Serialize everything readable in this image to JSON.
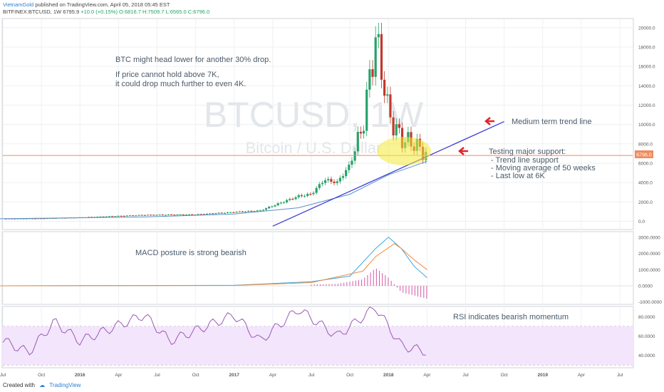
{
  "header": {
    "author": "VietnamGold",
    "published": "published on TradingView.com, April 05, 2018 05:45 EST",
    "symbol": "BITFINEX:BTCUSD, 1W",
    "last": "6795.9",
    "change": "+10.0 (+0.15%)",
    "ohlc": "O:6816.7 H:7509.7 L:6565.0 C:6796.0"
  },
  "watermark": {
    "symbol": "BTCUSD, 1W",
    "name": "Bitcoin / U.S. Dollar"
  },
  "annotations": {
    "main_1": "BTC might head lower for another 30% drop.",
    "main_2": "If price cannot hold above 7K,",
    "main_3": "it could drop much further to even 4K.",
    "trend": "Medium term trend line",
    "support_title": "Testing major support:",
    "support_1": "- Trend line support",
    "support_2": "- Moving average of 50 weeks",
    "support_3": "- Last low at 6K",
    "macd": "MACD posture is strong bearish",
    "rsi": "RSI indicates bearish momentum"
  },
  "price_tag": "6796.0",
  "footer": {
    "created": "Created with",
    "brand": "TradingView"
  },
  "colors": {
    "up": "#26a269",
    "down": "#c0392b",
    "trend": "#3b3bd6",
    "ma": "#5b8fc9",
    "macd": "#3aa7e0",
    "signal": "#f08a3c",
    "hist": "#d455a6",
    "rsi": "#9b59b6",
    "rsi_band": "#f3e5fb",
    "price_line": "#f08a5c",
    "ellipse": "#f4ea3a",
    "arrow": "#e0242a"
  },
  "chart_data": {
    "type": "candlestick",
    "x_ticks": [
      "Jul",
      "Oct",
      "2016",
      "Apr",
      "Jul",
      "Oct",
      "2017",
      "Apr",
      "Jul",
      "Oct",
      "2018",
      "Apr",
      "Jul",
      "Oct",
      "2019",
      "Apr",
      "Jul"
    ],
    "x_range": [
      "2015-07",
      "2019-08"
    ],
    "price_axis": {
      "ticks": [
        20000,
        18000,
        16000,
        14000,
        12000,
        10000,
        8000,
        6000,
        4000,
        2000,
        0
      ],
      "ylim": [
        -700,
        20500
      ]
    },
    "price_series": [
      {
        "date": "2015-06",
        "close": 260
      },
      {
        "date": "2015-10",
        "close": 300
      },
      {
        "date": "2016-01",
        "close": 400
      },
      {
        "date": "2016-06",
        "close": 650
      },
      {
        "date": "2016-10",
        "close": 700
      },
      {
        "date": "2017-01",
        "close": 950
      },
      {
        "date": "2017-03",
        "close": 1100
      },
      {
        "date": "2017-05",
        "close": 2100
      },
      {
        "date": "2017-06",
        "close": 2600
      },
      {
        "date": "2017-07",
        "close": 2800
      },
      {
        "date": "2017-08",
        "close": 4300
      },
      {
        "date": "2017-09",
        "close": 4000
      },
      {
        "date": "2017-10",
        "close": 5800
      },
      {
        "date": "2017-11",
        "close": 9800
      },
      {
        "date": "2017-12",
        "close": 19000
      },
      {
        "date": "2017-12-22",
        "close": 14000
      },
      {
        "date": "2018-01",
        "close": 11000
      },
      {
        "date": "2018-02",
        "close": 8500
      },
      {
        "date": "2018-03",
        "close": 8000
      },
      {
        "date": "2018-04",
        "close": 6796
      }
    ],
    "ma_50": [
      {
        "date": "2015-06",
        "value": 250
      },
      {
        "date": "2016-06",
        "value": 450
      },
      {
        "date": "2017-01",
        "value": 750
      },
      {
        "date": "2017-06",
        "value": 1400
      },
      {
        "date": "2017-10",
        "value": 2800
      },
      {
        "date": "2018-01",
        "value": 4800
      },
      {
        "date": "2018-04",
        "value": 6200
      }
    ],
    "trend_line": [
      {
        "date": "2017-04",
        "value": -500
      },
      {
        "date": "2018-10",
        "value": 10300
      }
    ],
    "last_price": 6796.0,
    "macd_axis": {
      "ticks": [
        3000,
        2000,
        1000,
        0,
        -1000
      ],
      "labels": [
        "3000.0000",
        "2000.0000",
        "1000.0000",
        "0.0000",
        "-1000.0000"
      ],
      "ylim": [
        -1100,
        3300
      ]
    },
    "macd": [
      {
        "date": "2015-06",
        "value": 0
      },
      {
        "date": "2017-01",
        "value": 30
      },
      {
        "date": "2017-07",
        "value": 250
      },
      {
        "date": "2017-10",
        "value": 600
      },
      {
        "date": "2017-12",
        "value": 2300
      },
      {
        "date": "2018-01",
        "value": 3000
      },
      {
        "date": "2018-02",
        "value": 2300
      },
      {
        "date": "2018-03",
        "value": 1200
      },
      {
        "date": "2018-04",
        "value": 500
      }
    ],
    "signal": [
      {
        "date": "2015-06",
        "value": 0
      },
      {
        "date": "2017-01",
        "value": 20
      },
      {
        "date": "2017-07",
        "value": 200
      },
      {
        "date": "2017-11",
        "value": 900
      },
      {
        "date": "2017-12",
        "value": 1800
      },
      {
        "date": "2018-01-15",
        "value": 2600
      },
      {
        "date": "2018-02",
        "value": 2300
      },
      {
        "date": "2018-03",
        "value": 1600
      },
      {
        "date": "2018-04",
        "value": 1000
      }
    ],
    "histogram": [
      {
        "date": "2017-07",
        "value": 80
      },
      {
        "date": "2017-09",
        "value": 120
      },
      {
        "date": "2017-11",
        "value": 400
      },
      {
        "date": "2017-12",
        "value": 1100
      },
      {
        "date": "2018-01",
        "value": 500
      },
      {
        "date": "2018-02",
        "value": -400
      },
      {
        "date": "2018-03",
        "value": -600
      },
      {
        "date": "2018-04",
        "value": -800
      }
    ],
    "rsi_axis": {
      "ticks": [
        80,
        60,
        40
      ],
      "labels": [
        "80.0000",
        "60.0000",
        "40.0000"
      ],
      "ylim": [
        28,
        90
      ],
      "band": [
        30,
        70
      ]
    },
    "rsi": [
      {
        "date": "2015-06",
        "value": 62
      },
      {
        "date": "2015-09",
        "value": 43
      },
      {
        "date": "2015-11",
        "value": 75
      },
      {
        "date": "2016-01",
        "value": 55
      },
      {
        "date": "2016-06",
        "value": 82
      },
      {
        "date": "2016-08",
        "value": 55
      },
      {
        "date": "2017-01",
        "value": 82
      },
      {
        "date": "2017-03",
        "value": 55
      },
      {
        "date": "2017-06",
        "value": 88
      },
      {
        "date": "2017-09",
        "value": 60
      },
      {
        "date": "2017-12",
        "value": 90
      },
      {
        "date": "2018-02",
        "value": 50
      },
      {
        "date": "2018-04",
        "value": 44
      }
    ]
  }
}
